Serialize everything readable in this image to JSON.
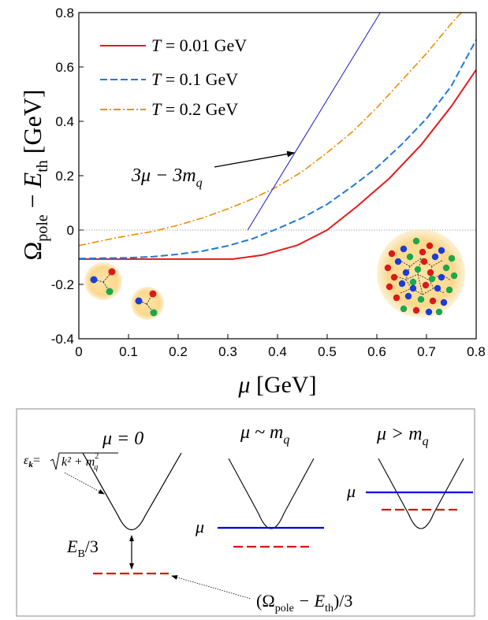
{
  "chart_data": {
    "type": "line",
    "xlabel": "μ [GeV]",
    "ylabel": "Ω_pole − E_th [GeV]",
    "xlim": [
      0,
      0.8
    ],
    "ylim": [
      -0.4,
      0.8
    ],
    "x_ticks": [
      "0",
      "0.1",
      "0.2",
      "0.3",
      "0.4",
      "0.5",
      "0.6",
      "0.7",
      "0.8"
    ],
    "y_ticks": [
      "-0.4",
      "-0.2",
      "0",
      "0.2",
      "0.4",
      "0.6",
      "0.8"
    ],
    "x_tick_values": [
      0,
      0.1,
      0.2,
      0.3,
      0.4,
      0.5,
      0.6,
      0.7,
      0.8
    ],
    "y_tick_values": [
      -0.4,
      -0.2,
      0,
      0.2,
      0.4,
      0.6,
      0.8
    ],
    "grid": false,
    "legend_position": "top-left",
    "series": [
      {
        "name": "T = 0.01 GeV",
        "color": "#e41a1c",
        "style": "solid",
        "x": [
          0,
          0.1,
          0.2,
          0.31,
          0.37,
          0.44,
          0.5,
          0.56,
          0.625,
          0.69,
          0.75,
          0.8
        ],
        "y": [
          -0.107,
          -0.107,
          -0.107,
          -0.107,
          -0.092,
          -0.056,
          0.0,
          0.087,
          0.19,
          0.315,
          0.455,
          0.59
        ]
      },
      {
        "name": "T = 0.1 GeV",
        "color": "#1f7ad6",
        "style": "dashed",
        "x": [
          0,
          0.1,
          0.15,
          0.2,
          0.25,
          0.3,
          0.35,
          0.4,
          0.45,
          0.5,
          0.55,
          0.6,
          0.65,
          0.7,
          0.75,
          0.8
        ],
        "y": [
          -0.105,
          -0.102,
          -0.098,
          -0.089,
          -0.077,
          -0.058,
          -0.032,
          0.005,
          0.045,
          0.095,
          0.16,
          0.23,
          0.315,
          0.41,
          0.53,
          0.7
        ]
      },
      {
        "name": "T = 0.2 GeV",
        "color": "#f08c00",
        "style": "dashdot",
        "x": [
          0,
          0.05,
          0.1,
          0.15,
          0.2,
          0.25,
          0.3,
          0.35,
          0.4,
          0.45,
          0.5,
          0.55,
          0.6,
          0.65,
          0.7,
          0.75,
          0.77
        ],
        "y": [
          -0.057,
          -0.038,
          -0.02,
          -0.005,
          0.018,
          0.045,
          0.078,
          0.115,
          0.16,
          0.215,
          0.285,
          0.36,
          0.45,
          0.55,
          0.65,
          0.76,
          0.8
        ]
      },
      {
        "name": "3μ − 3m_q",
        "color": "#1a1acf",
        "style": "thin",
        "x": [
          0.34,
          0.607
        ],
        "y": [
          0.0,
          0.8
        ]
      }
    ],
    "reference_line": {
      "y": 0,
      "style": "dotted",
      "color": "#666666"
    },
    "annotation": {
      "text_main": "3μ − 3m",
      "text_sub": "q",
      "arrow_to": [
        0.44,
        0.29
      ]
    }
  },
  "legend": [
    {
      "var": "T",
      "rest": " = 0.01 GeV"
    },
    {
      "var": "T",
      "rest": " = 0.1 GeV"
    },
    {
      "var": "T",
      "rest": " = 0.2 GeV"
    }
  ],
  "axis_labels": {
    "x_var": "μ",
    "x_unit": " [GeV]",
    "y_omega": "Ω",
    "y_pole": "pole",
    "y_minus": " − ",
    "y_e": "E",
    "y_th": "th",
    "y_unit": " [GeV]"
  },
  "schematic": {
    "panel1_title": "μ = 0",
    "panel2_title_main": "μ ~ m",
    "panel2_title_sub": "q",
    "panel3_title_main": "μ > m",
    "panel3_title_sub": "q",
    "epsilon_label": "ε",
    "epsilon_k": "k",
    "epsilon_eq": "=",
    "epsilon_root": "k² + m",
    "epsilon_root_sup": "2",
    "epsilon_root_sub": "q",
    "binding_label": "E",
    "binding_sub": "B",
    "binding_tail": "/3",
    "mu_label_2": "μ",
    "mu_label_3": "μ",
    "pole_label_open": "(Ω",
    "pole_label_sub": "pole",
    "pole_label_mid": " − E",
    "pole_label_sub2": "th",
    "pole_label_close": ")/3"
  },
  "colors": {
    "red": "#e41a1c",
    "blue": "#0000e0",
    "schematic_red": "#e01010",
    "blob": "#fbd98a"
  }
}
